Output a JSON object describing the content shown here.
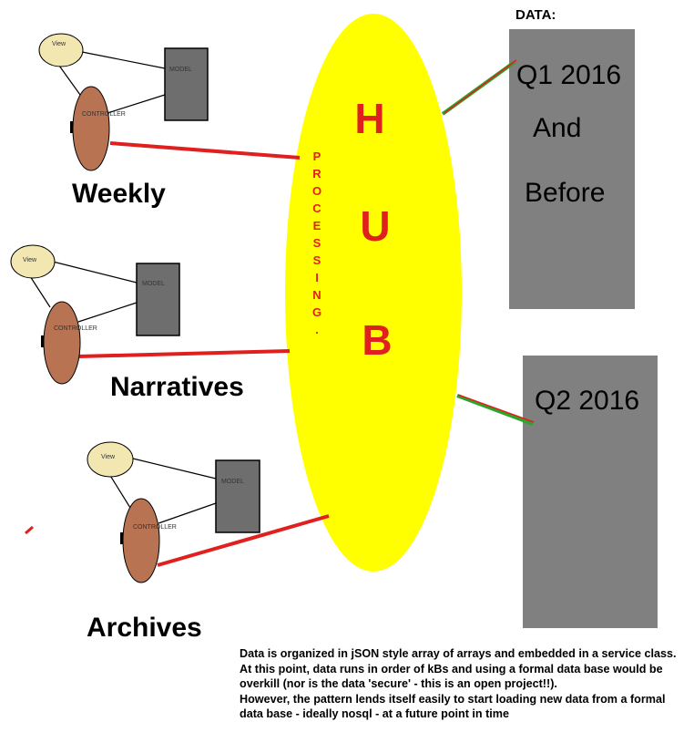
{
  "colors": {
    "hub_fill": "#ffff00",
    "hub_text": "#e0201e",
    "connector_red": "#e0201e",
    "connector_green": "#2aa52a",
    "data_box": "#808080",
    "model_box": "#6e6e6e",
    "view_fill": "#f2e6b1",
    "controller_fill": "#b87352"
  },
  "hub": {
    "letters": [
      "H",
      "U",
      "B"
    ],
    "processing_letters": [
      "P",
      "R",
      "O",
      "C",
      "E",
      "S",
      "S",
      "I",
      "N",
      "G",
      "."
    ]
  },
  "modules": [
    {
      "label": "Weekly",
      "view": "View",
      "model": "MODEL",
      "controller": "CONTROLLER"
    },
    {
      "label": "Narratives",
      "view": "View",
      "model": "MODEL",
      "controller": "CONTROLLER"
    },
    {
      "label": "Archives",
      "view": "View",
      "model": "MODEL",
      "controller": "CONTROLLER"
    }
  ],
  "data": {
    "header": "DATA:",
    "stores": [
      {
        "lines": [
          "Q1 2016",
          "And",
          "Before"
        ]
      },
      {
        "lines": [
          "Q2 2016"
        ]
      }
    ]
  },
  "note": {
    "lines": [
      "Data is organized in jSON style array of arrays and embedded in a service class.",
      "At this point, data runs in order of kBs and using a formal data base would be overkill (nor is the data 'secure' - this is an open project!!).",
      "However, the pattern lends itself easily to start loading new data from a formal data base - ideally nosql - at a future point in time"
    ]
  }
}
